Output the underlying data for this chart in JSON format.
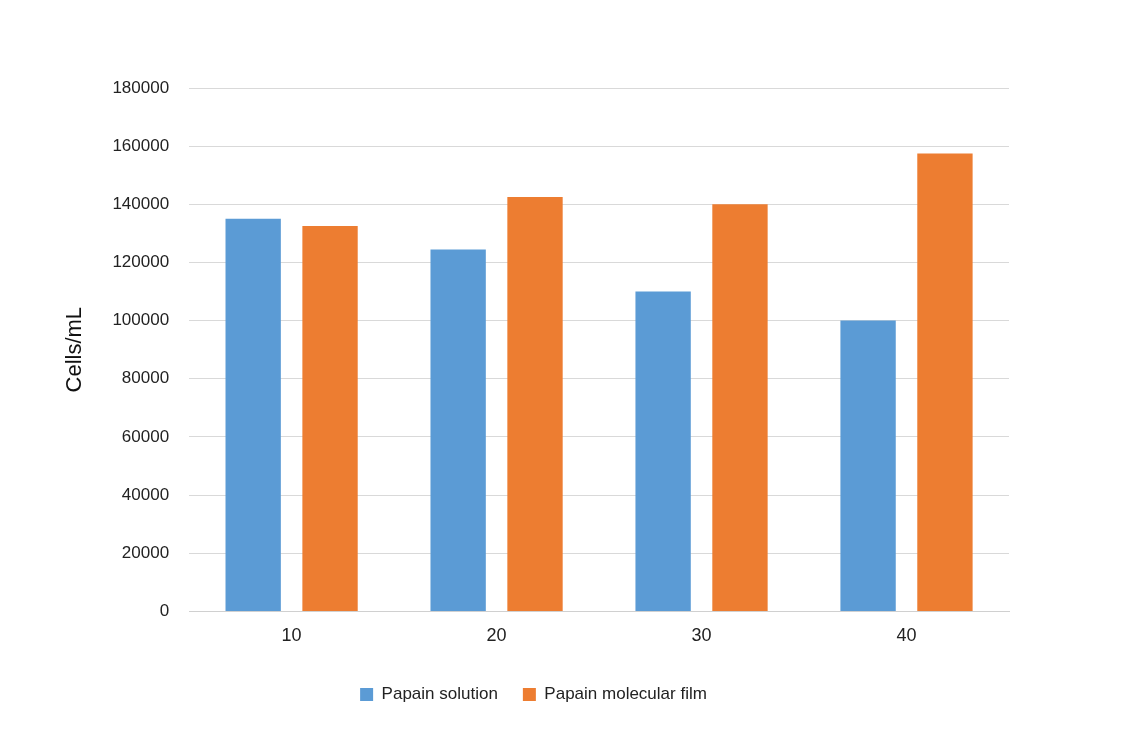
{
  "chart_data": {
    "type": "bar",
    "ylabel": "Cells/mL",
    "categories": [
      "10",
      "20",
      "30",
      "40"
    ],
    "series": [
      {
        "name": "Papain solution",
        "color": "#5b9bd5",
        "values": [
          135000,
          124500,
          110000,
          100000
        ]
      },
      {
        "name": "Papain molecular film",
        "color": "#ed7d31",
        "values": [
          132500,
          142500,
          140000,
          157500
        ]
      }
    ],
    "ylim": [
      0,
      180000
    ],
    "yticks": [
      0,
      20000,
      40000,
      60000,
      80000,
      100000,
      120000,
      140000,
      160000,
      180000
    ],
    "grid": "y",
    "legend": "bottom"
  }
}
